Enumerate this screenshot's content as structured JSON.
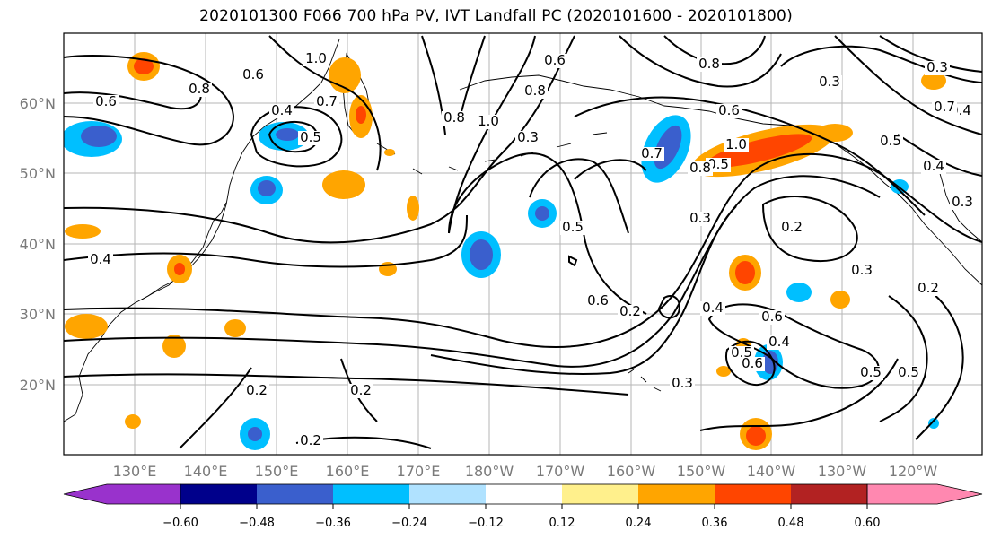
{
  "title": "2020101300 F066 700 hPa PV, IVT Landfall PC (2020101600 - 2020101800)",
  "lat_labels": [
    "60°N",
    "50°N",
    "40°N",
    "30°N",
    "20°N"
  ],
  "lon_labels": [
    "130°E",
    "140°E",
    "150°E",
    "160°E",
    "170°E",
    "180°W",
    "170°W",
    "160°W",
    "150°W",
    "140°W",
    "130°W",
    "120°W"
  ],
  "contour_labels": [
    "0.6",
    "0.8",
    "0.6",
    "1.0",
    "0.4",
    "0.5",
    "0.7",
    "0.4",
    "0.8",
    "1.0",
    "0.3",
    "0.8",
    "0.6",
    "0.8",
    "0.3",
    "1.0",
    "0.7",
    "0.6",
    "0.3",
    "0.4",
    "0.7",
    "0.5",
    "0.4",
    "0.5",
    "0.6",
    "0.2",
    "0.3",
    "0.5",
    "0.6",
    "0.4",
    "0.3",
    "0.5",
    "0.4",
    "0.3",
    "0.6",
    "0.5",
    "0.2",
    "0.2",
    "0.2",
    "0.2",
    "0.2",
    "0.3",
    "0.5",
    "0.8"
  ],
  "colorbar": {
    "colors": [
      "#9932cc",
      "#00008b",
      "#3a5fcd",
      "#00bfff",
      "#b0e2ff",
      "#ffffff",
      "#fff08c",
      "#ffa500",
      "#ff4500",
      "#b22222",
      "#ff88b0"
    ],
    "tick_labels": [
      "−0.60",
      "−0.48",
      "−0.36",
      "−0.24",
      "−0.12",
      "0.12",
      "0.24",
      "0.36",
      "0.48",
      "0.60"
    ]
  }
}
